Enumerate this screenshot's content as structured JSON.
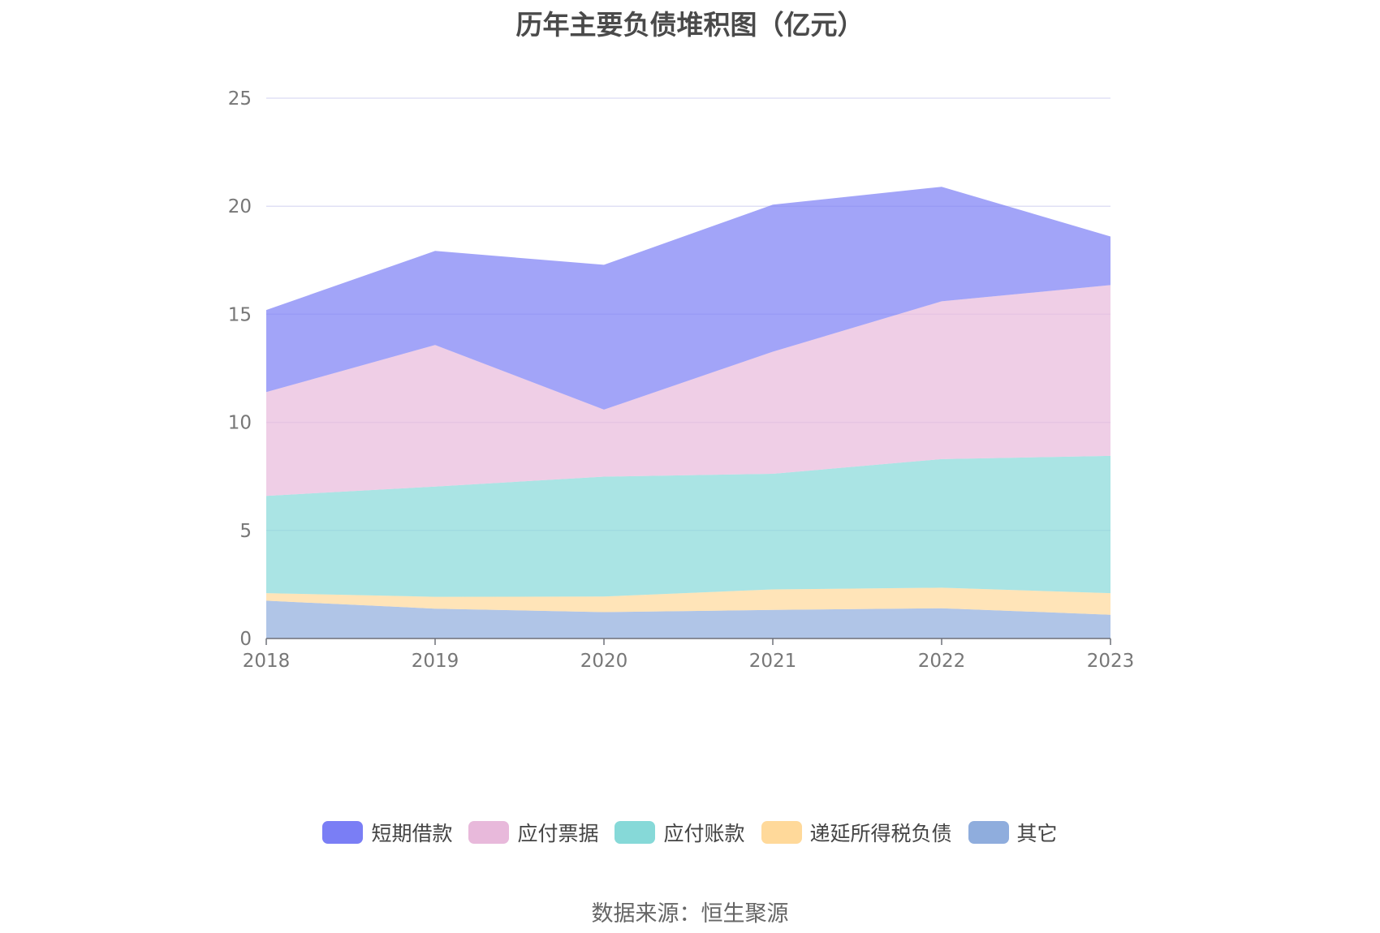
{
  "chart_data": {
    "type": "area",
    "stacked": true,
    "title": "历年主要负债堆积图（亿元）",
    "x": [
      "2018",
      "2019",
      "2020",
      "2021",
      "2022",
      "2023"
    ],
    "ylim": [
      0,
      25
    ],
    "yticks": [
      "0",
      "5",
      "10",
      "15",
      "20",
      "25"
    ],
    "grid": true,
    "legend_position": "bottom",
    "series": [
      {
        "name": "其它",
        "color": "#8faddd",
        "values": [
          1.75,
          1.38,
          1.22,
          1.32,
          1.4,
          1.1
        ]
      },
      {
        "name": "递延所得税负债",
        "color": "#ffd99a",
        "values": [
          0.35,
          0.55,
          0.72,
          0.95,
          0.95,
          1.0
        ]
      },
      {
        "name": "应付账款",
        "color": "#86d9d8",
        "values": [
          4.5,
          5.1,
          5.55,
          5.35,
          5.95,
          6.35
        ]
      },
      {
        "name": "应付票据",
        "color": "#e8b9db",
        "values": [
          4.8,
          6.55,
          3.1,
          5.65,
          7.3,
          7.9
        ]
      },
      {
        "name": "短期借款",
        "color": "#7a7ef5",
        "values": [
          3.8,
          4.35,
          6.7,
          6.8,
          5.3,
          2.25
        ]
      }
    ],
    "legend_order": [
      "短期借款",
      "应付票据",
      "应付账款",
      "递延所得税负债",
      "其它"
    ]
  },
  "source_note": "数据来源：恒生聚源"
}
